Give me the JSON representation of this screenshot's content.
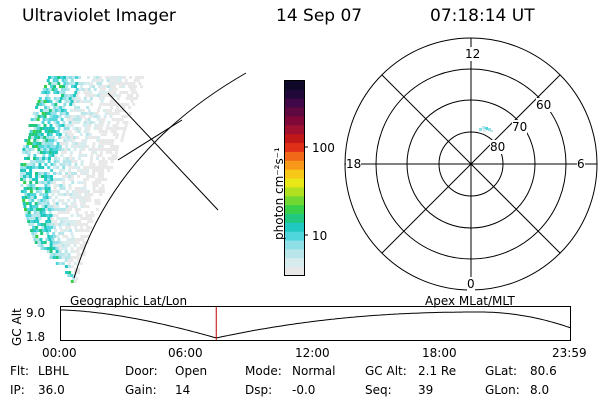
{
  "header": {
    "instrument": "Ultraviolet Imager",
    "date": "14 Sep 07",
    "time": "07:18:14 UT"
  },
  "colorbar": {
    "unit_label": "photon cm⁻²s⁻¹",
    "tick_labels": [
      "100",
      "10"
    ],
    "colors": [
      "#e8e8e8",
      "#d6ecee",
      "#b8e6ea",
      "#8ee0e6",
      "#4fd6dc",
      "#1fc8c0",
      "#20c880",
      "#38d048",
      "#70d830",
      "#b0e020",
      "#e8e818",
      "#f8c818",
      "#f89818",
      "#f06818",
      "#e03018",
      "#c01818",
      "#a01030",
      "#800838",
      "#600840",
      "#400848",
      "#200838",
      "#100828"
    ]
  },
  "polar_plot": {
    "mlt_labels": {
      "top": "12",
      "bottom": "0",
      "left": "18",
      "right": "6"
    },
    "lat_labels": [
      "60",
      "70",
      "80"
    ]
  },
  "timeline": {
    "y_axis_label": "GC Alt",
    "y_ticks": [
      "9.0",
      "1.8"
    ],
    "x_ticks": [
      "00:00",
      "06:00",
      "12:00",
      "18:00",
      "23:59"
    ],
    "left_caption": "Geographic Lat/Lon",
    "right_caption": "Apex MLat/MLT",
    "current_fraction": 0.3044,
    "marker_color": "#c00000"
  },
  "info": {
    "row1": [
      {
        "label": "Flt:",
        "value": "LBHL"
      },
      {
        "label": "Door:",
        "value": "Open"
      },
      {
        "label": "Mode:",
        "value": "Normal"
      },
      {
        "label": "GC Alt:",
        "value": "2.1 Re"
      },
      {
        "label": "GLat:",
        "value": "80.6"
      }
    ],
    "row2": [
      {
        "label": "IP:",
        "value": "36.0"
      },
      {
        "label": "Gain:",
        "value": "14"
      },
      {
        "label": "Dsp:",
        "value": "-0.0"
      },
      {
        "label": "Seq:",
        "value": "39"
      },
      {
        "label": "GLon:",
        "value": "8.0"
      }
    ]
  }
}
